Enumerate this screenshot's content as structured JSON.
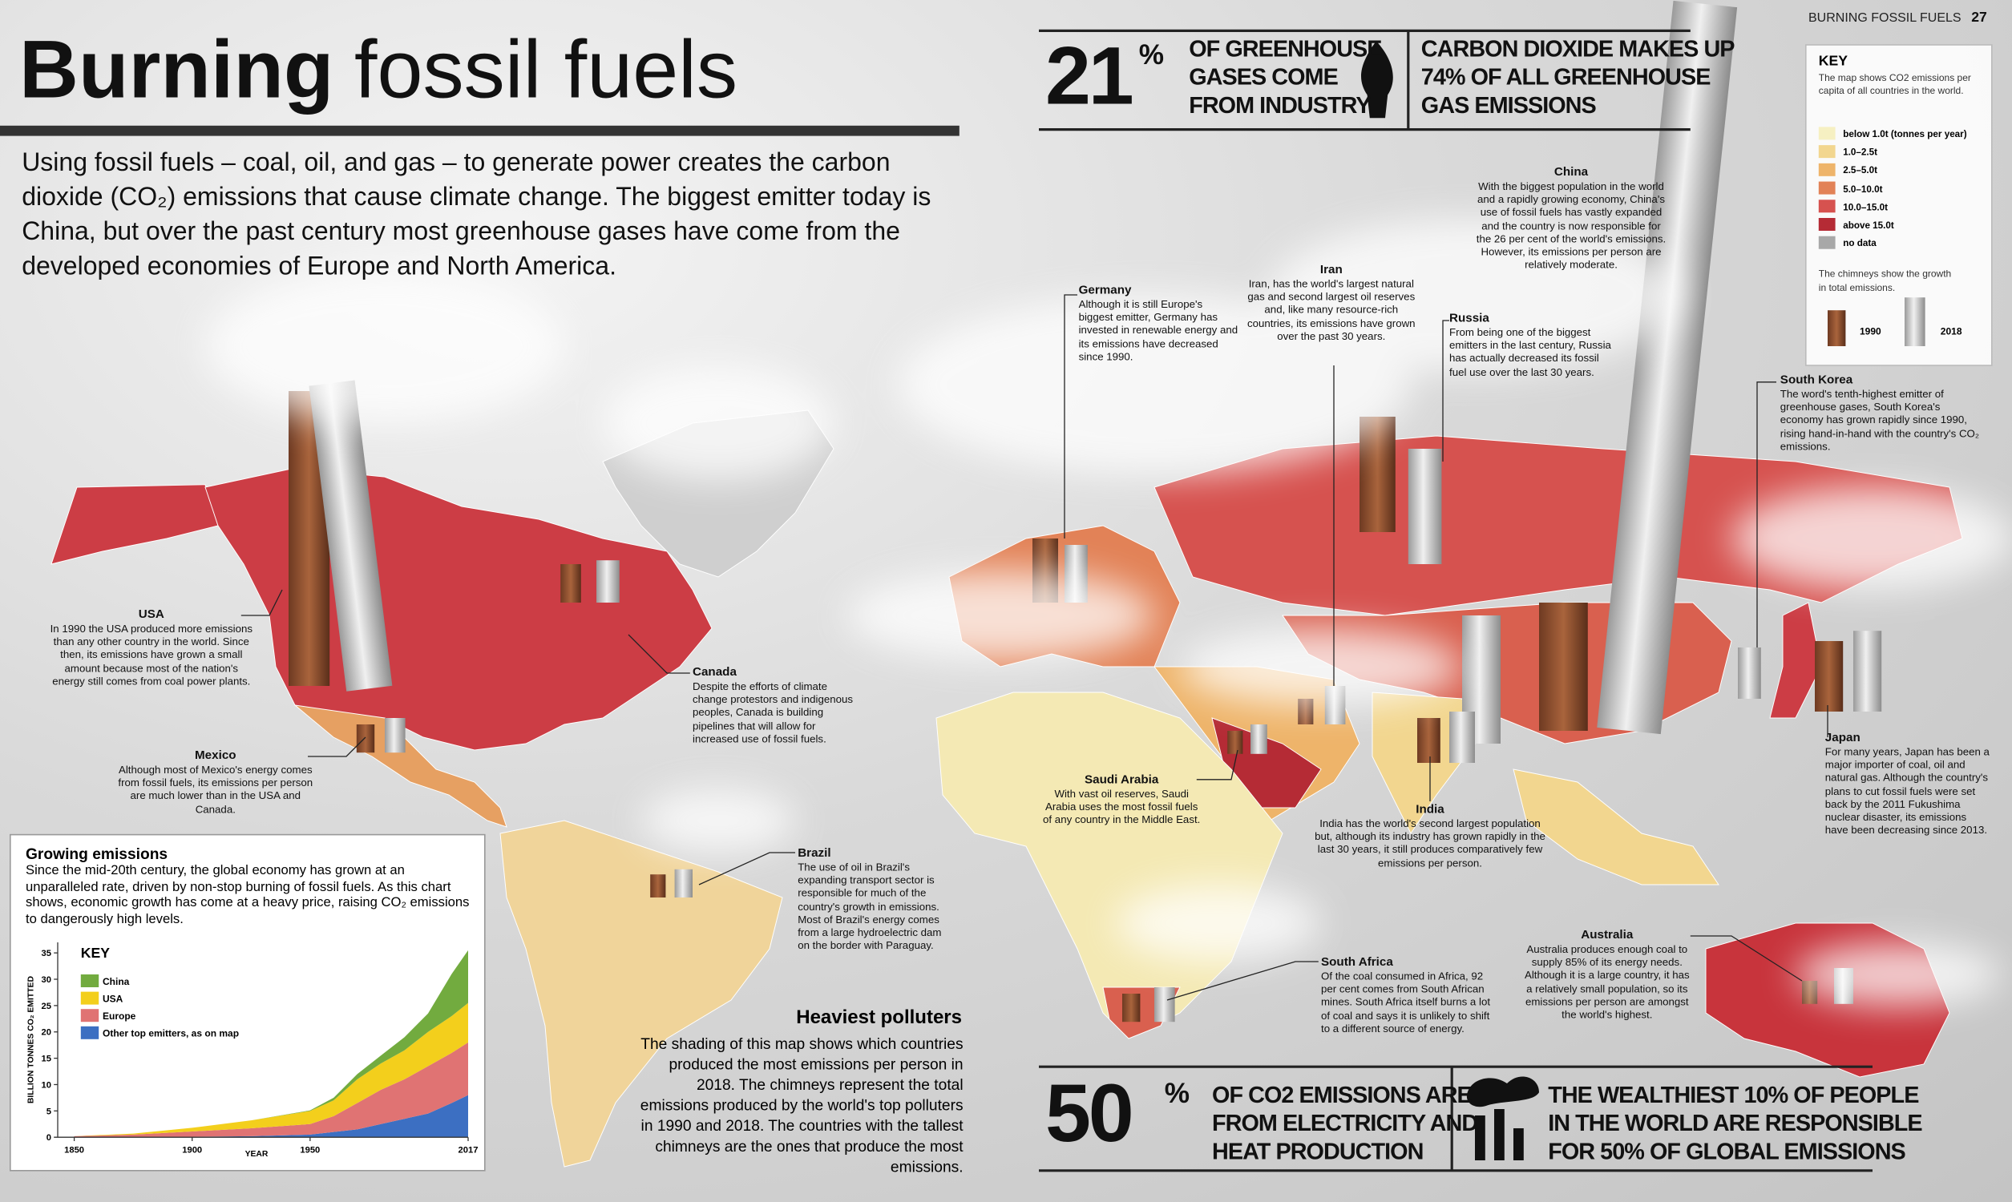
{
  "page": {
    "running_head": "BURNING FOSSIL FUELS",
    "page_number": "27",
    "title_bold": "Burning",
    "title_light": "fossil fuels",
    "intro": "Using fossil fuels – coal, oil, and gas – to generate power creates the carbon dioxide (CO₂) emissions that cause climate change. The biggest emitter today is China, but over the past century most greenhouse gases have come from the developed economies of Europe and North America.",
    "stats": [
      {
        "figure": "21",
        "unit": "%",
        "lines": [
          "OF GREENHOUSE",
          "GASES COME",
          "FROM INDUSTRY"
        ]
      },
      {
        "lines": [
          "CARBON DIOXIDE MAKES UP",
          "74% OF ALL GREENHOUSE",
          "GAS EMISSIONS"
        ]
      },
      {
        "figure": "50",
        "unit": "%",
        "lines": [
          "OF CO2 EMISSIONS ARE",
          "FROM ELECTRICITY AND",
          "HEAT PRODUCTION"
        ]
      },
      {
        "lines": [
          "THE WEALTHIEST 10% OF PEOPLE",
          "IN THE WORLD ARE RESPONSIBLE",
          "FOR 50% OF GLOBAL EMISSIONS"
        ]
      }
    ],
    "key": {
      "title": "KEY",
      "note": "The map shows CO2 emissions per capita of all countries in the world.",
      "entries": [
        {
          "label": "below 1.0t (tonnes per year)",
          "color": "#f6f0c2"
        },
        {
          "label": "1.0–2.5t",
          "color": "#f2d68f"
        },
        {
          "label": "2.5–5.0t",
          "color": "#eeb46a"
        },
        {
          "label": "5.0–10.0t",
          "color": "#e28257"
        },
        {
          "label": "10.0–15.0t",
          "color": "#d6524f"
        },
        {
          "label": "above 15.0t",
          "color": "#b52b35"
        },
        {
          "label": "no data",
          "color": "#a8a8a8"
        }
      ],
      "chimney_note": "The chimneys show the growth in total emissions.",
      "chimney_labels": [
        "1990",
        "2018"
      ]
    },
    "callouts": [
      {
        "title": "China",
        "text": "With the biggest population in the world and a rapidly growing economy, China's use of fossil fuels has vastly expanded and the country is now responsible for the 26 per cent of the world's emissions. However, its emissions per person are relatively moderate."
      },
      {
        "title": "Germany",
        "text": "Although it is still Europe's biggest emitter, Germany has invested in renewable energy and its emissions have decreased since 1990."
      },
      {
        "title": "Iran",
        "text": "Iran, has the world's largest natural gas and second largest oil reserves and, like many resource-rich countries, its emissions have grown over the past 30 years."
      },
      {
        "title": "Russia",
        "text": "From being one of the biggest emitters in the last century, Russia has actually decreased its fossil fuel use over the last 30 years."
      },
      {
        "title": "South Korea",
        "text": "The word's tenth-highest emitter of greenhouse gases, South Korea's economy has grown rapidly since 1990, rising hand-in-hand with the country's CO₂ emissions."
      },
      {
        "title": "USA",
        "text": "In 1990 the USA produced more emissions than any other country in the world. Since then, its emissions have grown a small amount because most of the nation's energy still comes from coal power plants."
      },
      {
        "title": "Canada",
        "text": "Despite the efforts of climate change protestors and indigenous peoples, Canada is building pipelines that will allow for increased use of fossil fuels."
      },
      {
        "title": "Mexico",
        "text": "Although most of Mexico's energy comes from fossil fuels, its emissions per person are much lower than in the USA and Canada."
      },
      {
        "title": "Brazil",
        "text": "The use of oil in Brazil's expanding transport sector is responsible for much of the country's growth in emissions. Most of Brazil's energy comes from a large hydroelectric dam on the border with Paraguay."
      },
      {
        "title": "Saudi Arabia",
        "text": "With vast oil reserves, Saudi Arabia uses the most fossil fuels of any country in the Middle East."
      },
      {
        "title": "India",
        "text": "India has the world's second largest population but, although its industry has grown rapidly in the last 30 years, it still produces comparatively few emissions per person."
      },
      {
        "title": "Japan",
        "text": "For many years, Japan has been a major importer of coal, oil and natural gas. Although the country's plans to cut fossil fuels were set back by the 2011 Fukushima nuclear disaster, its emissions have been decreasing since 2013."
      },
      {
        "title": "South Africa",
        "text": "Of the coal consumed in Africa, 92 per cent comes from South African mines. South Africa itself burns a lot of coal and says it is unlikely to shift to a different source of energy."
      },
      {
        "title": "Australia",
        "text": "Australia produces enough coal to supply 85% of its energy needs. Although it is a large country, it has a relatively small population, so its emissions per person are amongst the world's highest."
      }
    ],
    "heaviest": {
      "title": "Heaviest polluters",
      "text": "The shading of this map shows which countries produced the most emissions per person in 2018. The chimneys represent the total emissions produced by the world's top polluters in 1990 and 2018. The countries with the tallest chimneys are the ones that produce the most emissions."
    },
    "growing": {
      "title": "Growing emissions",
      "text": "Since the mid-20th century, the global economy has grown at an unparalleled rate, driven by non-stop burning of fossil fuels. As this chart shows, economic growth has come at a heavy price, raising CO₂ emissions to dangerously high levels."
    }
  },
  "chart_data": {
    "type": "area",
    "stacked": true,
    "key_title": "KEY",
    "y_label": "BILLION TONNES CO₂ EMITTED",
    "x_label": "YEAR",
    "x": [
      1850,
      1875,
      1900,
      1925,
      1950,
      1960,
      1970,
      1980,
      1990,
      2000,
      2010,
      2017
    ],
    "xlim": [
      1843,
      2017
    ],
    "xticks": [
      1850,
      1900,
      1950,
      2017
    ],
    "ylim": [
      0,
      37
    ],
    "yticks": [
      0,
      5,
      10,
      15,
      20,
      25,
      30,
      35
    ],
    "series": [
      {
        "name": "China",
        "color": "#72ab3f",
        "values": [
          0,
          0,
          0,
          0,
          0.1,
          0.5,
          1,
          1.5,
          2.5,
          3.5,
          8,
          10
        ]
      },
      {
        "name": "USA",
        "color": "#f3cf1c",
        "values": [
          0,
          0.2,
          0.7,
          1.5,
          2.5,
          3,
          4.5,
          5,
          5.5,
          6.5,
          7,
          7.5
        ]
      },
      {
        "name": "Europe",
        "color": "#e07373",
        "values": [
          0.2,
          0.5,
          1,
          1.5,
          2,
          3,
          5,
          6.5,
          7.5,
          9,
          9.5,
          10
        ]
      },
      {
        "name": "Other top emitters, as on map",
        "color": "#3c6fc2",
        "values": [
          0,
          0,
          0.1,
          0.2,
          0.5,
          1,
          1.5,
          2.5,
          3.5,
          4.5,
          6.5,
          8
        ]
      }
    ]
  }
}
